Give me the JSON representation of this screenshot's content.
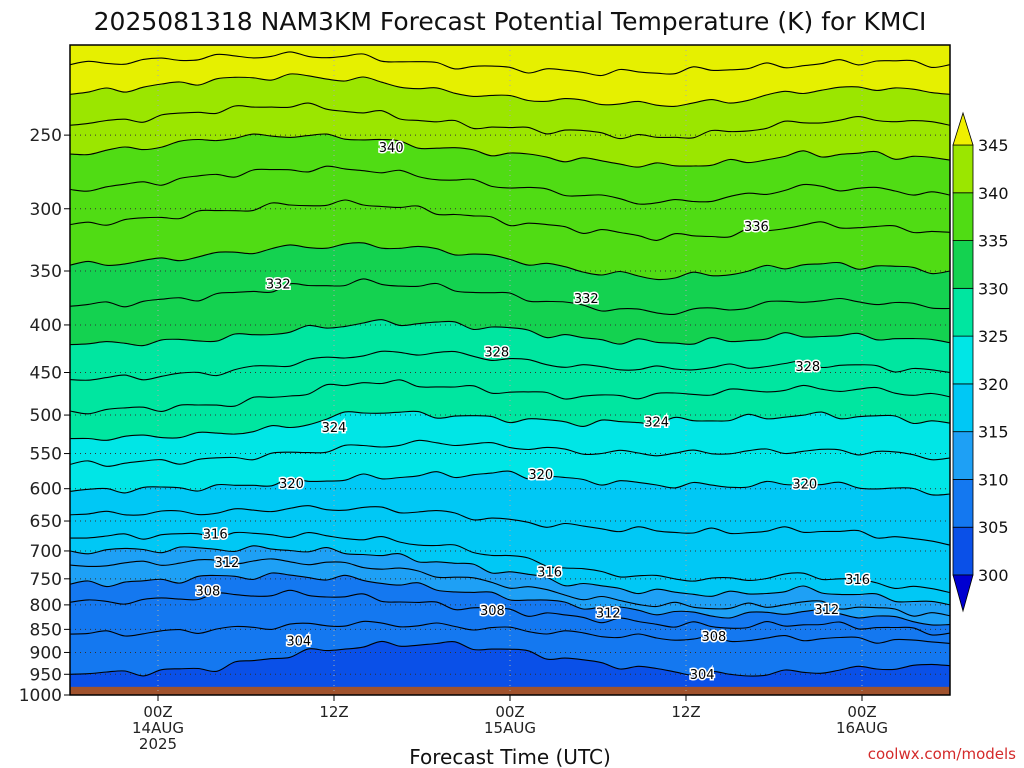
{
  "chart_data": {
    "type": "heatmap",
    "title": "2025081318 NAM3KM Forecast Potential Temperature (K) for KMCI",
    "xlabel": "Forecast Time (UTC)",
    "ylabel": "",
    "credit": "coolwx.com/models",
    "pressure_ticks": [
      "250",
      "300",
      "350",
      "400",
      "450",
      "500",
      "550",
      "600",
      "650",
      "700",
      "750",
      "800",
      "850",
      "900",
      "950",
      "1000"
    ],
    "time_ticks": [
      {
        "hour": 6,
        "lines": [
          "00Z",
          "14AUG",
          "2025"
        ]
      },
      {
        "hour": 18,
        "lines": [
          "12Z"
        ]
      },
      {
        "hour": 30,
        "lines": [
          "00Z",
          "15AUG"
        ]
      },
      {
        "hour": 42,
        "lines": [
          "12Z"
        ]
      },
      {
        "hour": 54,
        "lines": [
          "00Z",
          "16AUG"
        ]
      }
    ],
    "x_range_hours": [
      0,
      60
    ],
    "y_range_hpa": [
      200,
      1000
    ],
    "y_scale": "log-pressure",
    "grid": true,
    "colorbar": {
      "levels": [
        300,
        305,
        310,
        315,
        320,
        325,
        330,
        335,
        340,
        345
      ],
      "colors": [
        "#0a14c8",
        "#0a50e8",
        "#1478f0",
        "#1ea0f5",
        "#00c8f5",
        "#00e6e6",
        "#00e6a0",
        "#14d250",
        "#50dc14",
        "#9be600",
        "#e6f000"
      ],
      "over_color": "#f0f000",
      "under_color": "#0000d0"
    },
    "ground_color": "#a0522d",
    "ground_top_hpa": 980,
    "contours": [
      {
        "value": 304,
        "label_hour": 15.6,
        "label_hpa": 876
      },
      {
        "value": 304,
        "label_hour": 43.1,
        "label_hpa": 952
      },
      {
        "value": 308,
        "label_hour": 9.4,
        "label_hpa": 774
      },
      {
        "value": 308,
        "label_hour": 28.8,
        "label_hpa": 812
      },
      {
        "value": 308,
        "label_hour": 43.9,
        "label_hpa": 866
      },
      {
        "value": 312,
        "label_hour": 10.7,
        "label_hpa": 721
      },
      {
        "value": 312,
        "label_hour": 36.7,
        "label_hpa": 817
      },
      {
        "value": 312,
        "label_hour": 51.6,
        "label_hpa": 810
      },
      {
        "value": 316,
        "label_hour": 9.9,
        "label_hpa": 672
      },
      {
        "value": 316,
        "label_hour": 32.7,
        "label_hpa": 738
      },
      {
        "value": 316,
        "label_hour": 53.7,
        "label_hpa": 752
      },
      {
        "value": 320,
        "label_hour": 15.1,
        "label_hpa": 593
      },
      {
        "value": 320,
        "label_hour": 32.1,
        "label_hpa": 580
      },
      {
        "value": 320,
        "label_hour": 50.1,
        "label_hpa": 594
      },
      {
        "value": 324,
        "label_hour": 18.0,
        "label_hpa": 516
      },
      {
        "value": 324,
        "label_hour": 40.0,
        "label_hpa": 509
      },
      {
        "value": 328,
        "label_hour": 29.1,
        "label_hpa": 428
      },
      {
        "value": 328,
        "label_hour": 50.3,
        "label_hpa": 444
      },
      {
        "value": 332,
        "label_hour": 14.2,
        "label_hpa": 362
      },
      {
        "value": 332,
        "label_hour": 35.2,
        "label_hpa": 375
      },
      {
        "value": 336,
        "label_hour": 46.8,
        "label_hpa": 314
      },
      {
        "value": 340,
        "label_hour": 21.9,
        "label_hpa": 258
      }
    ],
    "isentropes": [
      {
        "value": 300,
        "hpa": [
          1000,
          1000,
          1000,
          1000,
          1000,
          1000,
          1000,
          1000,
          1000,
          1000,
          1000,
          1000,
          1000
        ]
      },
      {
        "value": 304,
        "hpa": [
          950,
          945,
          935,
          905,
          885,
          880,
          895,
          920,
          940,
          952,
          945,
          935,
          930
        ]
      },
      {
        "value": 306,
        "hpa": [
          860,
          858,
          850,
          842,
          838,
          842,
          850,
          860,
          868,
          872,
          868,
          872,
          880
        ]
      },
      {
        "value": 308,
        "hpa": [
          795,
          792,
          782,
          778,
          785,
          800,
          812,
          826,
          838,
          845,
          838,
          845,
          858
        ]
      },
      {
        "value": 310,
        "hpa": [
          760,
          756,
          746,
          744,
          752,
          768,
          785,
          802,
          814,
          822,
          812,
          824,
          840
        ]
      },
      {
        "value": 312,
        "hpa": [
          725,
          722,
          718,
          718,
          726,
          742,
          762,
          785,
          800,
          806,
          795,
          808,
          822
        ]
      },
      {
        "value": 314,
        "hpa": [
          700,
          698,
          696,
          697,
          704,
          718,
          738,
          762,
          775,
          780,
          770,
          784,
          800
        ]
      },
      {
        "value": 316,
        "hpa": [
          678,
          674,
          672,
          672,
          678,
          690,
          710,
          735,
          748,
          752,
          742,
          758,
          776
        ]
      },
      {
        "value": 318,
        "hpa": [
          640,
          637,
          636,
          630,
          630,
          636,
          650,
          660,
          666,
          668,
          664,
          672,
          690
        ]
      },
      {
        "value": 320,
        "hpa": [
          604,
          600,
          598,
          590,
          584,
          580,
          578,
          588,
          594,
          596,
          592,
          598,
          608
        ]
      },
      {
        "value": 322,
        "hpa": [
          565,
          562,
          558,
          550,
          540,
          535,
          540,
          548,
          550,
          548,
          546,
          548,
          556
        ]
      },
      {
        "value": 324,
        "hpa": [
          530,
          528,
          524,
          515,
          495,
          500,
          505,
          510,
          508,
          505,
          500,
          502,
          510
        ]
      },
      {
        "value": 326,
        "hpa": [
          495,
          492,
          488,
          476,
          460,
          465,
          472,
          478,
          476,
          472,
          468,
          470,
          478
        ]
      },
      {
        "value": 328,
        "hpa": [
          458,
          455,
          450,
          440,
          430,
          428,
          436,
          444,
          446,
          444,
          440,
          444,
          450
        ]
      },
      {
        "value": 330,
        "hpa": [
          420,
          418,
          414,
          406,
          398,
          398,
          404,
          414,
          418,
          416,
          410,
          412,
          418
        ]
      },
      {
        "value": 332,
        "hpa": [
          382,
          378,
          372,
          364,
          360,
          364,
          372,
          382,
          388,
          384,
          376,
          378,
          384
        ]
      },
      {
        "value": 334,
        "hpa": [
          345,
          342,
          336,
          330,
          328,
          332,
          340,
          350,
          356,
          352,
          344,
          346,
          350
        ]
      },
      {
        "value": 336,
        "hpa": [
          312,
          308,
          302,
          297,
          296,
          302,
          310,
          316,
          322,
          320,
          312,
          314,
          318
        ]
      },
      {
        "value": 338,
        "hpa": [
          286,
          282,
          276,
          272,
          272,
          278,
          284,
          290,
          296,
          292,
          284,
          286,
          290
        ]
      },
      {
        "value": 340,
        "hpa": [
          262,
          258,
          252,
          250,
          252,
          258,
          262,
          266,
          270,
          268,
          262,
          262,
          266
        ]
      },
      {
        "value": 342,
        "hpa": [
          244,
          240,
          235,
          232,
          236,
          242,
          246,
          248,
          252,
          248,
          242,
          240,
          244
        ]
      },
      {
        "value": 344,
        "hpa": [
          226,
          222,
          218,
          216,
          218,
          224,
          228,
          230,
          232,
          230,
          224,
          222,
          226
        ]
      },
      {
        "value": 346,
        "hpa": [
          210,
          208,
          206,
          205,
          206,
          210,
          212,
          214,
          214,
          212,
          210,
          208,
          210
        ]
      },
      {
        "value": 348,
        "hpa": [
          200,
          200,
          200,
          200,
          200,
          200,
          200,
          200,
          200,
          200,
          200,
          200,
          200
        ]
      }
    ],
    "isentrope_hours": [
      0,
      5,
      10,
      15,
      20,
      25,
      30,
      35,
      40,
      45,
      50,
      55,
      60
    ]
  }
}
